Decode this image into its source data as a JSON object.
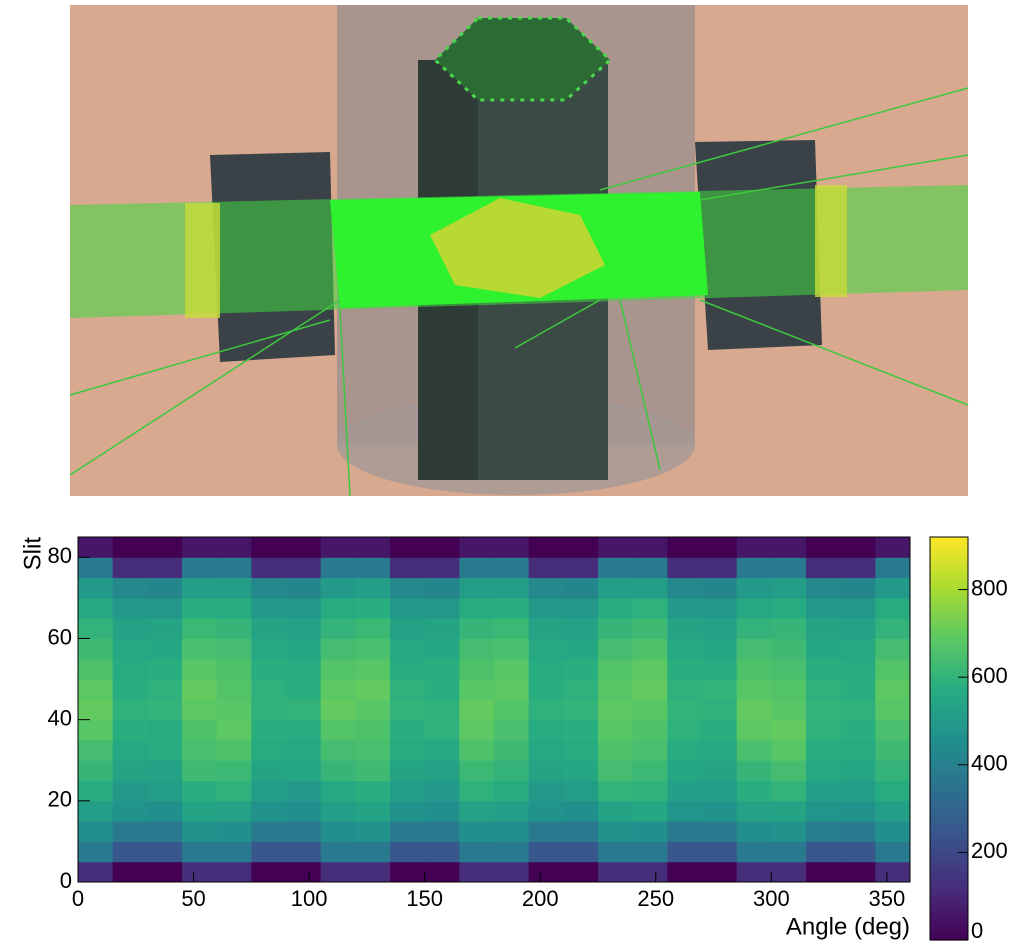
{
  "chart_data": {
    "type": "heatmap",
    "xlabel": "Angle (deg)",
    "ylabel": "Slit",
    "xlim": [
      0,
      360
    ],
    "ylim": [
      0,
      85
    ],
    "xticks": [
      0,
      50,
      100,
      150,
      200,
      250,
      300,
      350
    ],
    "yticks": [
      0,
      20,
      40,
      60,
      80
    ],
    "zlim": [
      0,
      920
    ],
    "zticks": [
      0,
      200,
      400,
      600,
      800
    ],
    "colormap": "viridis",
    "x_bins": [
      0,
      15,
      30,
      45,
      60,
      75,
      90,
      105,
      120,
      135,
      150,
      165,
      180,
      195,
      210,
      225,
      240,
      255,
      270,
      285,
      300,
      315,
      330,
      345,
      360
    ],
    "y_bins": [
      0,
      5,
      10,
      15,
      20,
      25,
      30,
      35,
      40,
      45,
      50,
      55,
      60,
      65,
      70,
      75,
      80,
      85
    ],
    "z": [
      [
        120,
        0,
        0,
        120,
        120,
        0,
        0,
        120,
        120,
        0,
        0,
        120,
        120,
        0,
        0,
        120,
        120,
        0,
        0,
        120,
        120,
        0,
        0,
        120
      ],
      [
        380,
        250,
        250,
        380,
        380,
        250,
        250,
        380,
        380,
        250,
        250,
        380,
        380,
        250,
        250,
        380,
        380,
        250,
        250,
        380,
        380,
        250,
        250,
        380
      ],
      [
        450,
        380,
        380,
        470,
        460,
        380,
        380,
        450,
        470,
        380,
        380,
        460,
        450,
        380,
        380,
        470,
        460,
        380,
        380,
        450,
        470,
        390,
        380,
        460
      ],
      [
        520,
        470,
        460,
        540,
        530,
        470,
        460,
        520,
        540,
        470,
        460,
        530,
        520,
        470,
        460,
        540,
        550,
        480,
        470,
        530,
        540,
        480,
        470,
        520
      ],
      [
        570,
        500,
        510,
        580,
        590,
        510,
        500,
        560,
        580,
        510,
        500,
        590,
        570,
        500,
        510,
        600,
        590,
        520,
        510,
        580,
        600,
        520,
        510,
        570
      ],
      [
        610,
        540,
        530,
        630,
        620,
        540,
        550,
        610,
        630,
        540,
        530,
        620,
        600,
        540,
        550,
        640,
        620,
        550,
        540,
        610,
        640,
        560,
        550,
        600
      ],
      [
        640,
        560,
        570,
        650,
        660,
        570,
        560,
        640,
        650,
        570,
        560,
        660,
        630,
        560,
        570,
        660,
        650,
        570,
        560,
        650,
        680,
        580,
        570,
        630
      ],
      [
        680,
        580,
        570,
        660,
        690,
        580,
        570,
        670,
        660,
        580,
        590,
        690,
        650,
        570,
        580,
        680,
        660,
        590,
        580,
        690,
        700,
        590,
        580,
        650
      ],
      [
        700,
        590,
        600,
        690,
        680,
        590,
        600,
        700,
        680,
        600,
        590,
        700,
        670,
        590,
        600,
        690,
        680,
        600,
        590,
        700,
        680,
        600,
        590,
        680
      ],
      [
        690,
        580,
        590,
        700,
        670,
        590,
        580,
        690,
        700,
        590,
        580,
        680,
        690,
        580,
        590,
        680,
        700,
        590,
        600,
        680,
        670,
        590,
        580,
        690
      ],
      [
        660,
        570,
        580,
        680,
        660,
        580,
        570,
        670,
        680,
        570,
        580,
        660,
        680,
        570,
        580,
        670,
        690,
        580,
        570,
        660,
        650,
        580,
        570,
        670
      ],
      [
        630,
        560,
        550,
        650,
        640,
        560,
        550,
        640,
        650,
        560,
        550,
        640,
        650,
        560,
        550,
        640,
        660,
        560,
        550,
        640,
        630,
        550,
        560,
        640
      ],
      [
        600,
        530,
        540,
        620,
        610,
        540,
        530,
        600,
        620,
        530,
        540,
        610,
        620,
        540,
        530,
        610,
        630,
        540,
        530,
        600,
        610,
        540,
        530,
        600
      ],
      [
        560,
        500,
        490,
        580,
        570,
        500,
        490,
        570,
        580,
        500,
        490,
        570,
        580,
        500,
        490,
        570,
        590,
        500,
        490,
        560,
        570,
        500,
        490,
        570
      ],
      [
        500,
        430,
        420,
        520,
        510,
        430,
        420,
        500,
        520,
        430,
        420,
        510,
        510,
        430,
        420,
        510,
        520,
        430,
        420,
        500,
        510,
        430,
        420,
        500
      ],
      [
        380,
        120,
        120,
        380,
        380,
        120,
        120,
        380,
        380,
        120,
        120,
        380,
        380,
        120,
        120,
        380,
        380,
        120,
        120,
        380,
        380,
        120,
        120,
        380
      ],
      [
        60,
        0,
        0,
        60,
        60,
        0,
        0,
        60,
        60,
        0,
        0,
        60,
        60,
        0,
        0,
        60,
        60,
        0,
        0,
        60,
        60,
        0,
        0,
        60
      ]
    ]
  }
}
